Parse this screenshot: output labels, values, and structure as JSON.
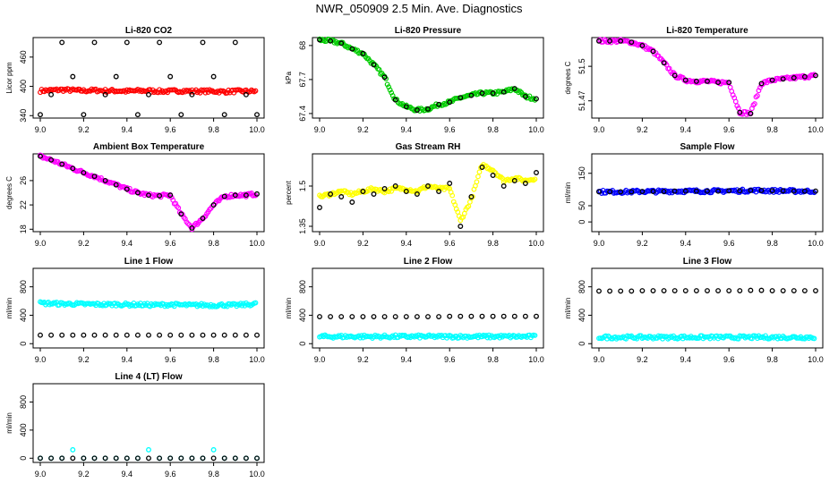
{
  "title": "NWR_050909  2.5 Min. Ave. Diagnostics",
  "chart_data": [
    {
      "type": "scatter",
      "title": "Li-820 CO2",
      "ylabel": "Licor ppm",
      "xlim": [
        9.0,
        10.0
      ],
      "ylim": [
        335,
        500
      ],
      "yticks": [
        340,
        400,
        460
      ],
      "xticks": [
        9.0,
        9.2,
        9.4,
        9.6,
        9.8,
        10.0
      ],
      "series": [
        {
          "color": "#ff0000",
          "dense": true,
          "y": [
            391,
            392,
            393,
            392,
            391,
            392,
            391,
            391,
            390,
            391,
            391,
            390,
            390,
            391,
            390,
            390,
            390,
            389,
            390,
            390,
            390
          ]
        },
        {
          "color": "#000000",
          "y": [
            342,
            383,
            490,
            420,
            342,
            490,
            383,
            420,
            490,
            342,
            383,
            490,
            420,
            342,
            383,
            490,
            420,
            342,
            490,
            383,
            342
          ]
        }
      ]
    },
    {
      "type": "scatter",
      "title": "Li-820 Pressure",
      "ylabel": "kPa",
      "xlim": [
        9.0,
        10.0
      ],
      "ylim": [
        67.36,
        68.07
      ],
      "yticks": [
        67.4,
        67.7,
        68.0
      ],
      "xticks": [
        9.0,
        9.2,
        9.4,
        9.6,
        9.8,
        10.0
      ],
      "series": [
        {
          "color": "#00cc00",
          "dense": true,
          "y": [
            68.05,
            68.04,
            68.02,
            67.97,
            67.93,
            67.83,
            67.72,
            67.52,
            67.46,
            67.43,
            67.44,
            67.48,
            67.5,
            67.54,
            67.56,
            67.58,
            67.58,
            67.59,
            67.62,
            67.55,
            67.53
          ]
        },
        {
          "color": "#000000",
          "y": [
            68.05,
            68.04,
            68.02,
            67.97,
            67.93,
            67.83,
            67.72,
            67.52,
            67.46,
            67.43,
            67.44,
            67.48,
            67.5,
            67.54,
            67.56,
            67.58,
            67.58,
            67.59,
            67.62,
            67.55,
            67.53
          ]
        }
      ]
    },
    {
      "type": "scatter",
      "title": "Li-820 Temperature",
      "ylabel": "degrees C",
      "xlim": [
        9.0,
        10.0
      ],
      "ylim": [
        51.455,
        51.525
      ],
      "yticks": [
        51.47,
        51.5
      ],
      "xticks": [
        9.0,
        9.2,
        9.4,
        9.6,
        9.8,
        10.0
      ],
      "series": [
        {
          "color": "#ff00ff",
          "dense": true,
          "y": [
            51.522,
            51.522,
            51.522,
            51.521,
            51.518,
            51.513,
            51.503,
            51.492,
            51.488,
            51.487,
            51.487,
            51.486,
            51.486,
            51.46,
            51.459,
            51.485,
            51.488,
            51.489,
            51.49,
            51.491,
            51.492
          ]
        },
        {
          "color": "#000000",
          "y": [
            51.522,
            51.522,
            51.522,
            51.521,
            51.518,
            51.513,
            51.503,
            51.492,
            51.488,
            51.487,
            51.487,
            51.486,
            51.486,
            51.46,
            51.459,
            51.485,
            51.488,
            51.489,
            51.49,
            51.491,
            51.492
          ]
        }
      ]
    },
    {
      "type": "scatter",
      "title": "Ambient Box Temperature",
      "ylabel": "degrees C",
      "xlim": [
        9.0,
        10.0
      ],
      "ylim": [
        17.6,
        30.4
      ],
      "yticks": [
        18,
        22,
        26
      ],
      "xticks": [
        9.0,
        9.2,
        9.4,
        9.6,
        9.8,
        10.0
      ],
      "series": [
        {
          "color": "#ff00ff",
          "dense": true,
          "y": [
            30.0,
            29.4,
            28.7,
            28.0,
            27.3,
            26.7,
            26.0,
            25.3,
            24.6,
            24.0,
            23.6,
            23.5,
            23.6,
            20.5,
            18.2,
            19.8,
            22.0,
            23.4,
            23.6,
            23.6,
            23.8
          ]
        },
        {
          "color": "#000000",
          "y": [
            30.0,
            29.4,
            28.7,
            28.0,
            27.3,
            26.7,
            26.0,
            25.3,
            24.6,
            24.0,
            23.6,
            23.5,
            23.6,
            20.5,
            18.2,
            19.8,
            22.0,
            23.4,
            23.6,
            23.6,
            23.8
          ]
        }
      ]
    },
    {
      "type": "scatter",
      "title": "Gas Stream RH",
      "ylabel": "percent",
      "xlim": [
        9.0,
        10.0
      ],
      "ylim": [
        1.33,
        1.62
      ],
      "yticks": [
        1.35,
        1.5
      ],
      "xticks": [
        9.0,
        9.2,
        9.4,
        9.6,
        9.8,
        10.0
      ],
      "series": [
        {
          "color": "#ffff00",
          "dense": true,
          "y": [
            1.46,
            1.47,
            1.48,
            1.47,
            1.48,
            1.49,
            1.48,
            1.49,
            1.49,
            1.48,
            1.5,
            1.49,
            1.49,
            1.37,
            1.45,
            1.58,
            1.56,
            1.52,
            1.53,
            1.52,
            1.53
          ]
        },
        {
          "color": "#000000",
          "y": [
            1.42,
            1.47,
            1.46,
            1.44,
            1.48,
            1.47,
            1.49,
            1.5,
            1.48,
            1.47,
            1.5,
            1.48,
            1.51,
            1.35,
            1.46,
            1.57,
            1.54,
            1.5,
            1.52,
            1.51,
            1.55
          ]
        }
      ]
    },
    {
      "type": "scatter",
      "title": "Sample Flow",
      "ylabel": "ml/min",
      "xlim": [
        9.0,
        10.0
      ],
      "ylim": [
        -30,
        210
      ],
      "yticks": [
        0,
        50,
        150
      ],
      "xticks": [
        9.0,
        9.2,
        9.4,
        9.6,
        9.8,
        10.0
      ],
      "series": [
        {
          "color": "#0000ff",
          "dense": true,
          "y": [
            93,
            93,
            93,
            93,
            94,
            94,
            94,
            95,
            95,
            95,
            95,
            95,
            96,
            96,
            97,
            97,
            96,
            96,
            95,
            95,
            95
          ]
        },
        {
          "color": "#000000",
          "y": [
            93,
            93,
            93,
            93,
            94,
            94,
            94,
            95,
            95,
            95,
            95,
            95,
            96,
            96,
            97,
            97,
            96,
            96,
            95,
            95,
            95
          ]
        }
      ]
    },
    {
      "type": "scatter",
      "title": "Line 1 Flow",
      "ylabel": "ml/min",
      "xlim": [
        9.0,
        10.0
      ],
      "ylim": [
        -60,
        1060
      ],
      "yticks": [
        0,
        400,
        800
      ],
      "xticks": [
        9.0,
        9.2,
        9.4,
        9.6,
        9.8,
        10.0
      ],
      "series": [
        {
          "color": "#00ffff",
          "dense": true,
          "y": [
            570,
            565,
            560,
            560,
            555,
            555,
            550,
            555,
            550,
            550,
            545,
            545,
            550,
            545,
            540,
            545,
            540,
            545,
            540,
            550,
            560
          ]
        },
        {
          "color": "#000000",
          "y": [
            120,
            120,
            120,
            120,
            120,
            120,
            120,
            120,
            120,
            120,
            120,
            120,
            120,
            120,
            120,
            120,
            120,
            120,
            120,
            120,
            120
          ]
        }
      ]
    },
    {
      "type": "scatter",
      "title": "Line 2 Flow",
      "ylabel": "ml/min",
      "xlim": [
        9.0,
        10.0
      ],
      "ylim": [
        -60,
        1060
      ],
      "yticks": [
        0,
        400,
        800
      ],
      "xticks": [
        9.0,
        9.2,
        9.4,
        9.6,
        9.8,
        10.0
      ],
      "series": [
        {
          "color": "#00ffff",
          "dense": true,
          "y": [
            100,
            100,
            100,
            100,
            100,
            100,
            100,
            100,
            100,
            100,
            100,
            100,
            100,
            100,
            100,
            100,
            100,
            100,
            100,
            100,
            100
          ]
        },
        {
          "color": "#000000",
          "y": [
            380,
            380,
            380,
            380,
            380,
            380,
            380,
            380,
            380,
            380,
            380,
            380,
            385,
            385,
            385,
            385,
            385,
            385,
            385,
            385,
            385
          ]
        }
      ]
    },
    {
      "type": "scatter",
      "title": "Line 3 Flow",
      "ylabel": "ml/min",
      "xlim": [
        9.0,
        10.0
      ],
      "ylim": [
        -60,
        1060
      ],
      "yticks": [
        0,
        400,
        800
      ],
      "xticks": [
        9.0,
        9.2,
        9.4,
        9.6,
        9.8,
        10.0
      ],
      "series": [
        {
          "color": "#00ffff",
          "dense": true,
          "y": [
            90,
            90,
            90,
            90,
            90,
            90,
            90,
            90,
            90,
            90,
            90,
            90,
            90,
            90,
            90,
            90,
            90,
            90,
            90,
            90,
            90
          ]
        },
        {
          "color": "#000000",
          "y": [
            740,
            740,
            740,
            740,
            745,
            745,
            745,
            745,
            745,
            745,
            745,
            745,
            745,
            745,
            750,
            750,
            745,
            745,
            745,
            745,
            745
          ]
        }
      ]
    },
    {
      "type": "scatter",
      "title": "Line 4 (LT) Flow",
      "ylabel": "ml/min",
      "xlim": [
        9.0,
        10.0
      ],
      "ylim": [
        -60,
        1060
      ],
      "yticks": [
        0,
        400,
        800
      ],
      "xticks": [
        9.0,
        9.2,
        9.4,
        9.6,
        9.8,
        10.0
      ],
      "series": [
        {
          "color": "#00ffff",
          "y": [
            0,
            0,
            0,
            120,
            0,
            0,
            0,
            0,
            0,
            0,
            120,
            0,
            0,
            0,
            0,
            0,
            120,
            0,
            0,
            0,
            0
          ]
        },
        {
          "color": "#000000",
          "y": [
            0,
            0,
            0,
            0,
            0,
            0,
            0,
            0,
            0,
            0,
            0,
            0,
            0,
            0,
            0,
            0,
            0,
            0,
            0,
            0,
            0
          ]
        }
      ]
    }
  ]
}
